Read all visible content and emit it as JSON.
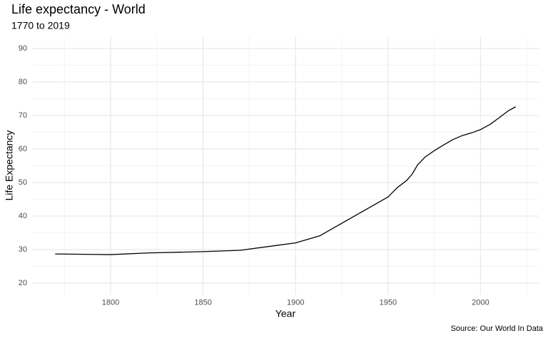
{
  "chart_data": {
    "type": "line",
    "title": "Life expectancy - World",
    "subtitle": "1770 to 2019",
    "x_label": "Year",
    "y_label": "Life Expectancy",
    "caption": "Source: Our World In Data",
    "x": [
      1770,
      1800,
      1820,
      1850,
      1870,
      1900,
      1913,
      1950,
      1955,
      1960,
      1963,
      1966,
      1970,
      1975,
      1980,
      1985,
      1990,
      1995,
      2000,
      2005,
      2010,
      2015,
      2019
    ],
    "series": [
      {
        "name": "World",
        "color": "#000000",
        "values": [
          28.7,
          28.5,
          29.0,
          29.4,
          29.8,
          32.0,
          34.1,
          45.7,
          48.5,
          50.6,
          52.5,
          55.3,
          57.6,
          59.5,
          61.2,
          62.8,
          64.0,
          64.8,
          65.8,
          67.3,
          69.3,
          71.4,
          72.6
        ]
      }
    ],
    "xlim": [
      1757.55,
      2031.45
    ],
    "xticks": [
      1800,
      1850,
      1900,
      1950,
      2000
    ],
    "xminorticks": [
      1775,
      1825,
      1875,
      1925,
      1975,
      2025
    ],
    "ylim": [
      16.5,
      93.5
    ],
    "yticks": [
      20,
      30,
      40,
      50,
      60,
      70,
      80,
      90
    ],
    "yminorticks": [
      25,
      35,
      45,
      55,
      65,
      75,
      85
    ],
    "grid": true
  }
}
